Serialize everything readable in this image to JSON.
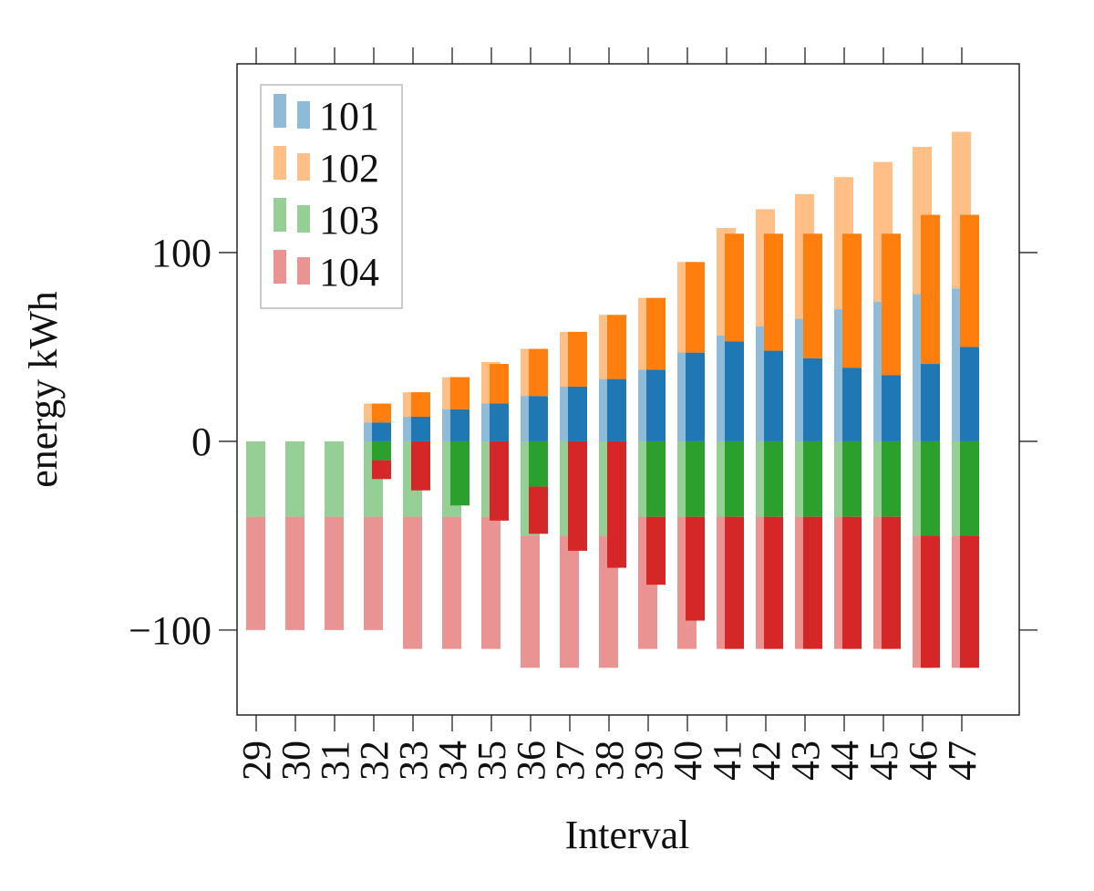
{
  "chart_data": {
    "type": "bar",
    "stacked": true,
    "x_label": "Interval",
    "y_label": "energy  kWh",
    "categories": [
      "29",
      "30",
      "31",
      "32",
      "33",
      "34",
      "35",
      "36",
      "37",
      "38",
      "39",
      "40",
      "41",
      "42",
      "43",
      "44",
      "45",
      "46",
      "47"
    ],
    "ylim": [
      -145,
      200
    ],
    "yticks": [
      {
        "value": -100,
        "label": "−100"
      },
      0,
      100
    ],
    "grid": false,
    "legend": "upper left",
    "light_opacity": 0.5,
    "series": [
      {
        "name": "101",
        "color": "#1f77b4",
        "values": [
          0,
          0,
          0,
          10,
          13,
          17,
          20,
          24,
          29,
          33,
          38,
          47,
          56,
          61,
          65,
          70,
          74,
          78,
          81
        ],
        "values_solid": [
          0,
          0,
          0,
          10,
          13,
          17,
          20,
          24,
          29,
          33,
          38,
          47,
          53,
          48,
          44,
          39,
          35,
          41,
          50
        ]
      },
      {
        "name": "102",
        "color": "#ff7f0e",
        "values": [
          0,
          0,
          0,
          10,
          13,
          17,
          22,
          25,
          29,
          34,
          38,
          48,
          57,
          62,
          66,
          70,
          74,
          78,
          83
        ],
        "values_solid": [
          0,
          0,
          0,
          10,
          13,
          17,
          21,
          25,
          29,
          34,
          38,
          48,
          57,
          62,
          66,
          71,
          75,
          79,
          70
        ]
      },
      {
        "name": "103",
        "color": "#2ca02c",
        "values": [
          -40,
          -40,
          -40,
          -40,
          -40,
          -40,
          -40,
          -50,
          -50,
          -50,
          -40,
          -40,
          -40,
          -40,
          -40,
          -40,
          -40,
          -50,
          -50
        ],
        "values_solid": [
          0,
          0,
          0,
          -10,
          0,
          -34,
          0,
          -24,
          0,
          0,
          -40,
          -40,
          -40,
          -40,
          -40,
          -40,
          -40,
          -50,
          -50
        ]
      },
      {
        "name": "104",
        "color": "#d62728",
        "values": [
          -60,
          -60,
          -60,
          -60,
          -70,
          -70,
          -70,
          -70,
          -70,
          -70,
          -70,
          -70,
          -70,
          -70,
          -70,
          -70,
          -70,
          -70,
          -70
        ],
        "values_solid": [
          0,
          0,
          0,
          -10,
          -26,
          0,
          -42,
          -25,
          -58,
          -67,
          -36,
          -55,
          -70,
          -70,
          -70,
          -70,
          -70,
          -70,
          -70
        ]
      }
    ]
  }
}
